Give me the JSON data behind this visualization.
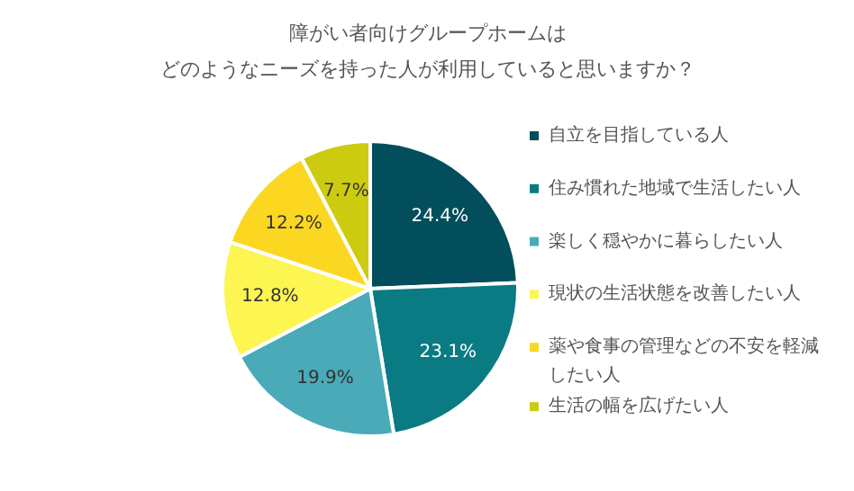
{
  "chart_data": {
    "type": "pie",
    "title": "障がい者向けグループホームはどのようなニーズを持った人が利用していると思いますか？",
    "categories": [
      "自立を目指している人",
      "住み慣れた地域で生活したい人",
      "楽しく穏やかに暮らしたい人",
      "現状の生活状態を改善したい人",
      "薬や食事の管理などの不安を軽減したい人",
      "生活の幅を広げたい人"
    ],
    "values": [
      24.4,
      23.1,
      19.9,
      12.8,
      12.2,
      7.7
    ],
    "colors": [
      "#034e5c",
      "#0a7b83",
      "#4aaab8",
      "#fdf552",
      "#fcd722",
      "#cdcb10"
    ],
    "value_labels": [
      "24.4%",
      "23.1%",
      "19.9%",
      "12.8%",
      "12.2%",
      "7.7%"
    ],
    "legend": "right"
  }
}
